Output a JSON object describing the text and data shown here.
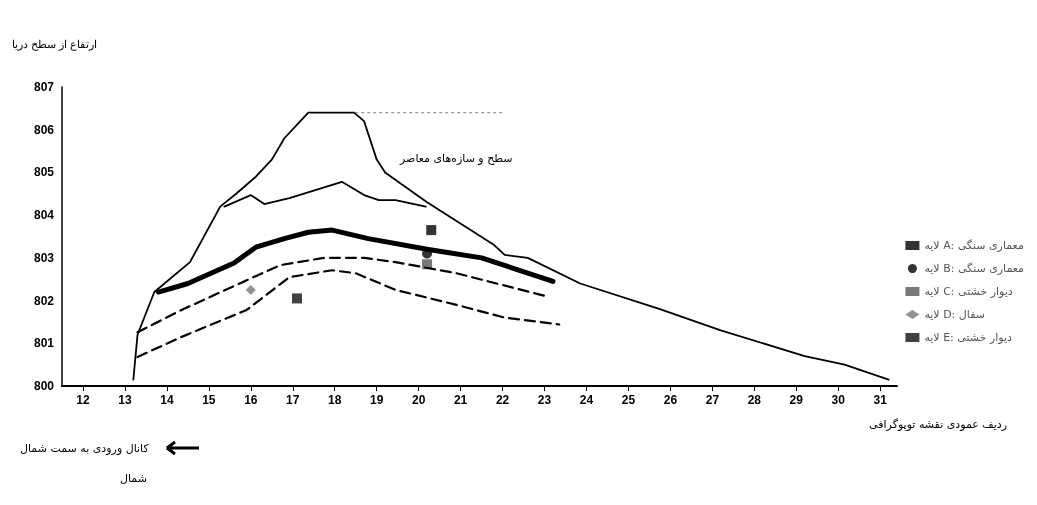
{
  "chart_data": {
    "type": "line",
    "ylabel": "ارتفاع از سطح دریا",
    "xlabel": "ردیف عمودی نقشه توپوگرافی",
    "xlim": [
      11.5,
      31.4
    ],
    "xticks": [
      12,
      13,
      14,
      15,
      16,
      17,
      18,
      19,
      20,
      21,
      22,
      23,
      24,
      25,
      26,
      27,
      28,
      29,
      30,
      31
    ],
    "ylim": [
      800,
      807
    ],
    "yticks": [
      800,
      801,
      802,
      803,
      804,
      805,
      806,
      807
    ],
    "grid": false,
    "legend": "right",
    "marker": "none",
    "annotations": [
      "سطح و سازه‌های معاصر",
      "کانال ورودی به سمت شمال",
      "شمال"
    ],
    "series": [
      {
        "color": "#000000",
        "line_style": "solid",
        "x": [
          13.2,
          13.3,
          13.7,
          14.55,
          15.27,
          15.65,
          16.12,
          16.5,
          16.8,
          17.37,
          18.46,
          18.7,
          19.0,
          19.2,
          20.2,
          21.8,
          22.05,
          22.6,
          23.85,
          25.75,
          27.2,
          29.2,
          30.15,
          31.2
        ],
        "values": [
          800.15,
          801.2,
          802.2,
          802.9,
          804.2,
          804.5,
          804.9,
          805.3,
          805.8,
          806.4,
          806.4,
          806.2,
          805.3,
          805.0,
          804.3,
          803.3,
          803.07,
          803.0,
          802.4,
          801.8,
          801.3,
          800.7,
          800.5,
          800.15
        ]
      },
      {
        "color": "#000000",
        "line_style": "solid",
        "x": [
          15.37,
          16.0,
          16.32,
          16.92,
          18.17,
          18.7,
          19.05,
          19.45,
          20.17
        ],
        "values": [
          804.2,
          804.47,
          804.26,
          804.4,
          804.78,
          804.47,
          804.35,
          804.35,
          804.2
        ]
      },
      {
        "color": "#000000",
        "line_style": "solid",
        "x": [
          13.8,
          14.5,
          15.6,
          16.12,
          16.8,
          17.37,
          17.94,
          18.8,
          20.2,
          21.5,
          23.2
        ],
        "values": [
          802.2,
          802.4,
          802.88,
          803.25,
          803.45,
          803.6,
          803.65,
          803.45,
          803.2,
          803.0,
          802.45
        ]
      },
      {
        "color": "#000000",
        "line_style": "dashed",
        "x": [
          13.3,
          14.35,
          15.8,
          16.7,
          17.75,
          18.7,
          19.45,
          20.9,
          23.05
        ],
        "values": [
          801.26,
          801.78,
          802.43,
          802.83,
          803.0,
          803.0,
          802.9,
          802.64,
          802.1
        ]
      },
      {
        "color": "#000000",
        "line_style": "dashed",
        "x": [
          13.3,
          14.35,
          15.9,
          16.92,
          17.94,
          18.5,
          19.45,
          20.9,
          22.05,
          23.35
        ],
        "values": [
          800.68,
          801.15,
          801.78,
          802.55,
          802.71,
          802.64,
          802.25,
          801.9,
          801.6,
          801.44
        ]
      },
      {
        "color": "#999999",
        "line_style": "dotted",
        "x": [
          18.5,
          22.0
        ],
        "values": [
          806.4,
          806.4
        ]
      },
      {
        "type": "scatter",
        "name": "لایه A: معماری سنگی",
        "marker": "square",
        "color": "#000000",
        "x": [
          20.3
        ],
        "values": [
          803.65
        ]
      },
      {
        "type": "scatter",
        "name": "لایه B: معماری سنگی",
        "marker": "circle",
        "color": "#000000",
        "x": [
          20.2
        ],
        "values": [
          803.1
        ]
      },
      {
        "type": "scatter",
        "name": "لایه C: دیوار خشتی",
        "marker": "square",
        "color": "#555555",
        "x": [
          20.2
        ],
        "values": [
          802.85
        ]
      },
      {
        "type": "scatter",
        "name": "لایه D: سفال",
        "marker": "diamond",
        "color": "#777777",
        "x": [
          16.0
        ],
        "values": [
          802.25
        ]
      },
      {
        "type": "scatter",
        "name": "لایه E: دیوار خشتی",
        "marker": "square",
        "color": "#111111",
        "x": [
          17.1
        ],
        "values": [
          802.05
        ]
      }
    ]
  }
}
